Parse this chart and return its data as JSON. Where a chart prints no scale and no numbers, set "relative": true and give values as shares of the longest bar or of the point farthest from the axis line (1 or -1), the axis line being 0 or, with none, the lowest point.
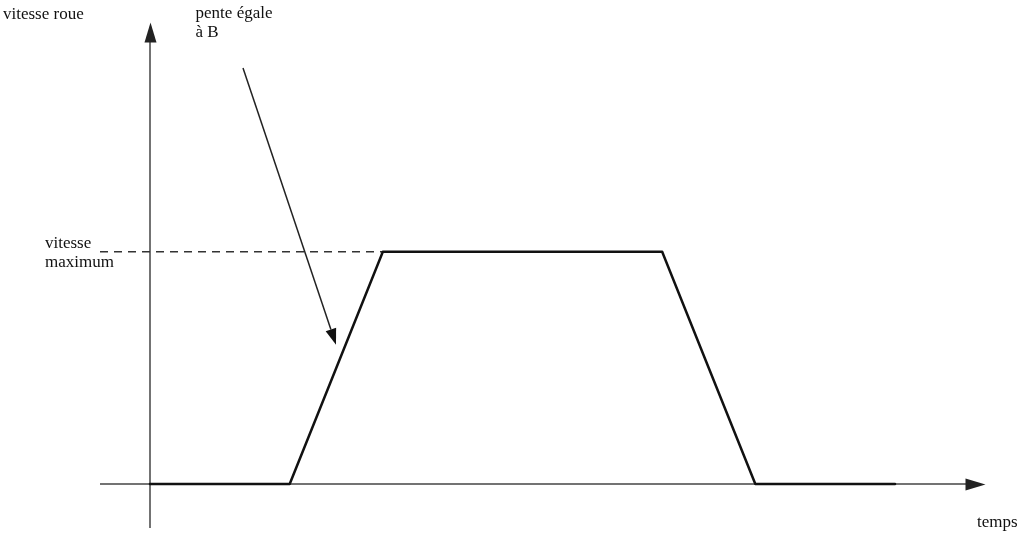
{
  "chart_data": {
    "type": "line",
    "xlabel": "temps",
    "relative": true,
    "categories": [
      null,
      null,
      null,
      null,
      null,
      null,
      null,
      null,
      null,
      null,
      null,
      null,
      null,
      null,
      null,
      null,
      null
    ],
    "values": [
      0,
      0,
      0,
      0,
      0.5,
      1,
      1,
      1,
      1,
      1,
      1,
      1,
      0.5,
      0,
      0,
      0,
      0
    ],
    "color": "#111111",
    "marker": "none",
    "ref_lines": [
      {
        "axis": "y",
        "value": 1,
        "label": "vitesse maximum",
        "line_style": "dashed",
        "color": "#333333"
      }
    ],
    "annotations": [
      "pente égale à B",
      "vitesse roue"
    ]
  }
}
